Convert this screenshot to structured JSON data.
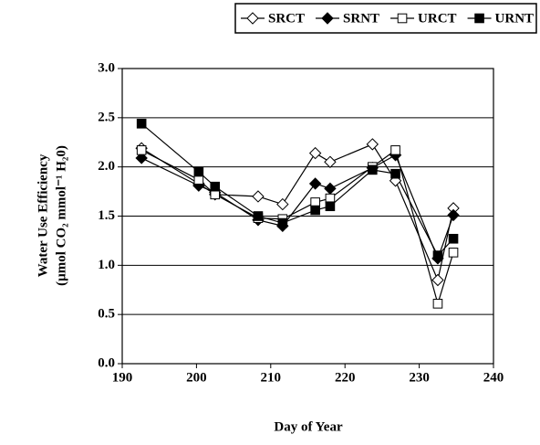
{
  "chart_data": {
    "type": "line",
    "x_label": "Day of Year",
    "y_label": [
      "Water Use Efficiency",
      "(µmol CO₂ mmol⁻¹ H₂0)"
    ],
    "x": [
      192.6,
      200.3,
      202.5,
      208.3,
      211.6,
      216,
      218,
      223.7,
      226.8,
      232.5,
      234.6
    ],
    "series": [
      {
        "name": "SRCT",
        "color": "#000000",
        "marker": "diamond",
        "filled": false,
        "values": [
          2.19,
          1.83,
          1.72,
          1.7,
          1.62,
          2.14,
          2.05,
          2.23,
          1.86,
          0.85,
          1.58
        ]
      },
      {
        "name": "SRNT",
        "color": "#000000",
        "marker": "diamond",
        "filled": true,
        "values": [
          2.09,
          1.81,
          1.74,
          1.46,
          1.4,
          1.83,
          1.78,
          1.99,
          2.12,
          1.07,
          1.51
        ]
      },
      {
        "name": "URCT",
        "color": "#000000",
        "marker": "square",
        "filled": false,
        "values": [
          2.17,
          1.87,
          1.72,
          1.48,
          1.47,
          1.64,
          1.68,
          2.0,
          2.17,
          0.61,
          1.13
        ]
      },
      {
        "name": "URNT",
        "color": "#000000",
        "marker": "square",
        "filled": true,
        "values": [
          2.44,
          1.95,
          1.8,
          1.5,
          1.43,
          1.56,
          1.6,
          1.97,
          1.93,
          1.1,
          1.27
        ]
      }
    ],
    "xlim": [
      190,
      240
    ],
    "xticks": [
      190,
      200,
      210,
      220,
      230,
      240
    ],
    "ylim": [
      0,
      3
    ],
    "yticks": [
      {
        "value": 0,
        "label": "0.0"
      },
      {
        "value": 0.5,
        "label": "0.5"
      },
      {
        "value": 1,
        "label": "1.0"
      },
      {
        "value": 1.5,
        "label": "1.5"
      },
      {
        "value": 2,
        "label": "2.0"
      },
      {
        "value": 2.5,
        "label": "2.5"
      },
      {
        "value": 3,
        "label": "3.0"
      }
    ],
    "grid": true,
    "legend": "top"
  }
}
